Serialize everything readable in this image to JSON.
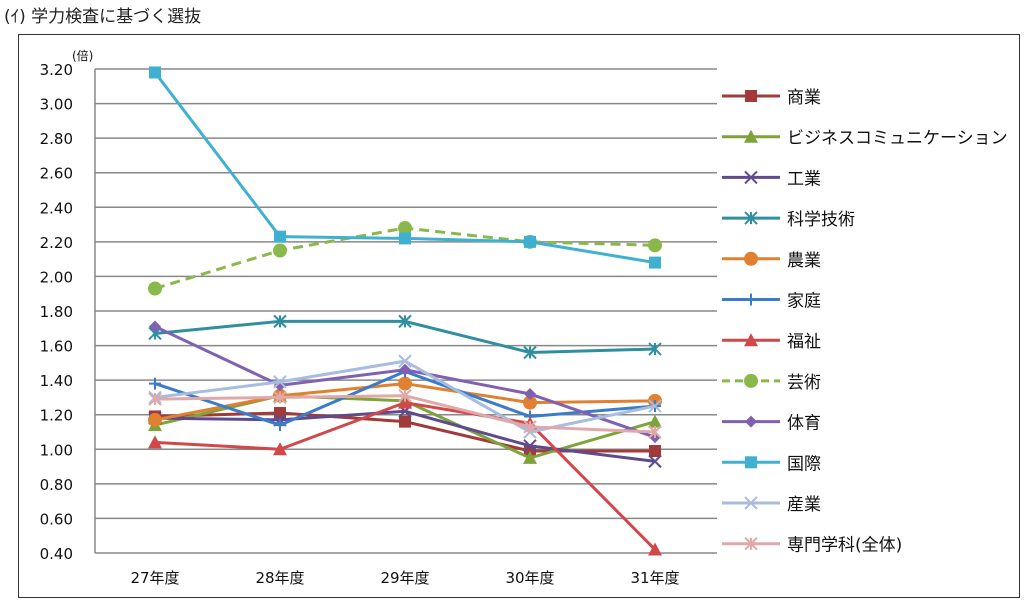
{
  "section_title": "(ｲ) 学力検査に基づく選抜",
  "chart_data": {
    "type": "line",
    "title": "",
    "ylabel": "(倍)",
    "xlabel": "",
    "ylim": [
      0.4,
      3.2
    ],
    "yticks": [
      "0.40",
      "0.60",
      "0.80",
      "1.00",
      "1.20",
      "1.40",
      "1.60",
      "1.80",
      "2.00",
      "2.20",
      "2.40",
      "2.60",
      "2.80",
      "3.00",
      "3.20"
    ],
    "categories": [
      "27年度",
      "28年度",
      "29年度",
      "30年度",
      "31年度"
    ],
    "legend_position": "right",
    "grid": true,
    "series": [
      {
        "name": "商業",
        "color": "#a33a3a",
        "marker": "square",
        "values": [
          1.19,
          1.21,
          1.16,
          0.99,
          0.99
        ]
      },
      {
        "name": "ビジネスコミュニケーション",
        "color": "#7ea33a",
        "marker": "triangle",
        "values": [
          1.14,
          1.31,
          1.28,
          0.95,
          1.16
        ]
      },
      {
        "name": "工業",
        "color": "#5f4a8c",
        "marker": "x",
        "values": [
          1.18,
          1.17,
          1.22,
          1.02,
          0.93
        ]
      },
      {
        "name": "科学技術",
        "color": "#2f8fa0",
        "marker": "asterisk",
        "values": [
          1.67,
          1.74,
          1.74,
          1.56,
          1.58
        ]
      },
      {
        "name": "農業",
        "color": "#e08030",
        "marker": "circle",
        "values": [
          1.17,
          1.31,
          1.38,
          1.27,
          1.28
        ]
      },
      {
        "name": "家庭",
        "color": "#3a7cc8",
        "marker": "plus",
        "values": [
          1.38,
          1.14,
          1.45,
          1.19,
          1.25
        ]
      },
      {
        "name": "福祉",
        "color": "#d04848",
        "marker": "triangle",
        "values": [
          1.04,
          1.0,
          1.27,
          1.15,
          0.42
        ]
      },
      {
        "name": "芸術",
        "color": "#8ab84a",
        "marker": "circle",
        "dashed": true,
        "values": [
          1.93,
          2.15,
          2.28,
          2.2,
          2.18
        ]
      },
      {
        "name": "体育",
        "color": "#8060b0",
        "marker": "diamond",
        "values": [
          1.71,
          1.37,
          1.46,
          1.32,
          1.07
        ]
      },
      {
        "name": "国際",
        "color": "#40b0d0",
        "marker": "square",
        "values": [
          3.18,
          2.23,
          2.22,
          2.2,
          2.08
        ]
      },
      {
        "name": "産業",
        "color": "#a8bce0",
        "marker": "x",
        "values": [
          1.3,
          1.39,
          1.51,
          1.1,
          1.25
        ]
      },
      {
        "name": "専門学科(全体)",
        "color": "#e0a8a8",
        "marker": "asterisk",
        "values": [
          1.29,
          1.3,
          1.31,
          1.13,
          1.1
        ]
      }
    ]
  }
}
